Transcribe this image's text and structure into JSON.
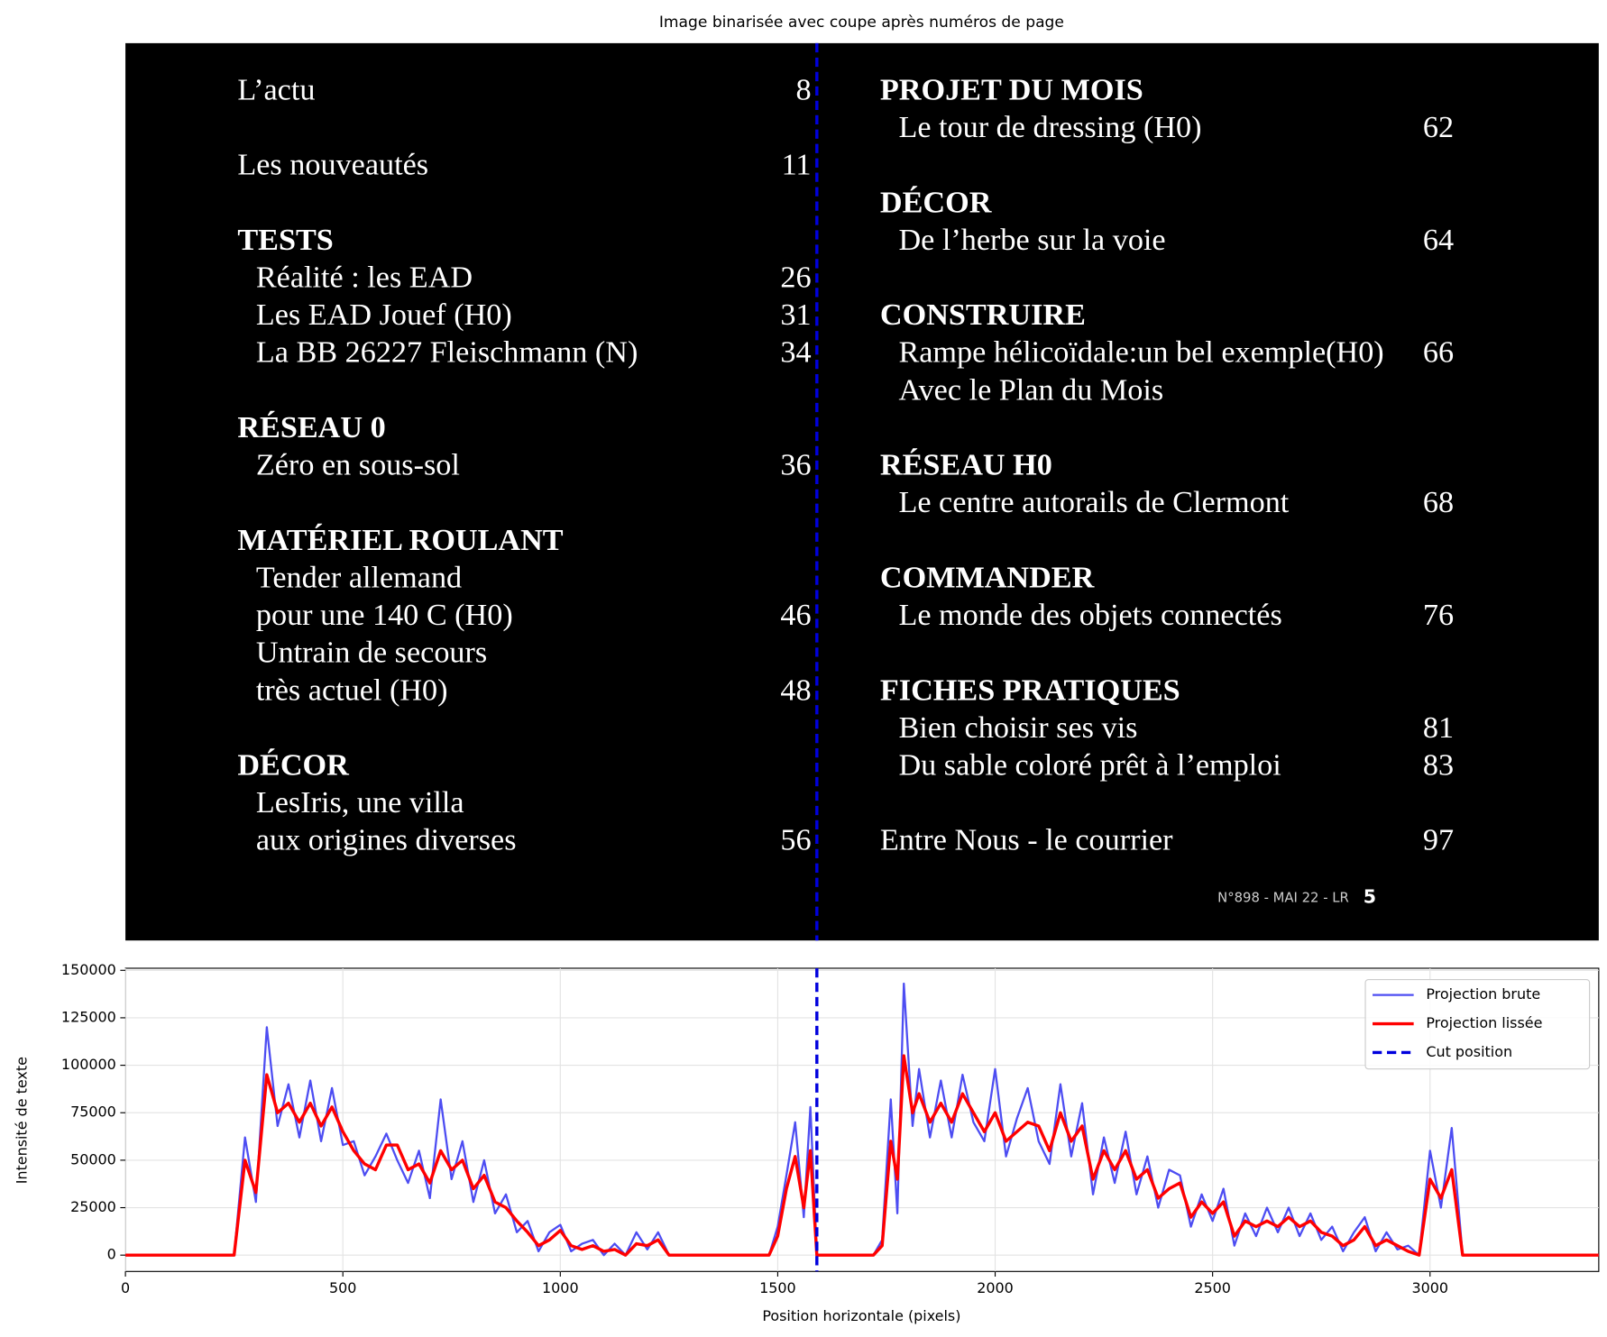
{
  "chart_data": [
    {
      "type": "image",
      "title": "Image binarisée avec coupe après numéros de page",
      "xlim": [
        0,
        3388
      ],
      "cut_x": 1590,
      "cut_color": "#0000dd",
      "left": [
        {
          "items": [
            {
              "text": "L’actu",
              "page": 8
            }
          ]
        },
        {
          "items": [
            {
              "text": "Les nouveautés",
              "page": 11
            }
          ]
        },
        {
          "heading": "TESTS",
          "items": [
            {
              "text": "Réalité : les EAD",
              "page": 26
            },
            {
              "text": "Les EAD Jouef (H0)",
              "page": 31
            },
            {
              "text": "La BB 26227 Fleischmann (N)",
              "page": 34
            }
          ]
        },
        {
          "heading": "RÉSEAU 0",
          "items": [
            {
              "text": "Zéro en sous-sol",
              "page": 36
            }
          ]
        },
        {
          "heading": "MATÉRIEL ROULANT",
          "items": [
            {
              "text": "Tender allemand"
            },
            {
              "text": "pour une 140 C (H0)",
              "page": 46
            },
            {
              "text": "Untrain de secours"
            },
            {
              "text": "très actuel (H0)",
              "page": 48
            }
          ]
        },
        {
          "heading": "DÉCOR",
          "items": [
            {
              "text": "LesIris, une villa"
            },
            {
              "text": "aux origines diverses",
              "page": 56
            }
          ]
        }
      ],
      "right": [
        {
          "heading": "PROJET DU MOIS",
          "items": [
            {
              "text": "Le tour de dressing (H0)",
              "page": 62
            }
          ]
        },
        {
          "heading": "DÉCOR",
          "items": [
            {
              "text": "De l’herbe sur la voie",
              "page": 64
            }
          ]
        },
        {
          "heading": "CONSTRUIRE",
          "items": [
            {
              "text": "Rampe hélicoïdale:un bel exemple(H0)",
              "page": 66
            },
            {
              "text": "Avec le Plan du Mois"
            }
          ]
        },
        {
          "heading": "RÉSEAU H0",
          "items": [
            {
              "text": "Le centre autorails de Clermont",
              "page": 68
            }
          ]
        },
        {
          "heading": "COMMANDER",
          "items": [
            {
              "text": "Le monde des objets connectés",
              "page": 76
            }
          ]
        },
        {
          "heading": "FICHES PRATIQUES",
          "items": [
            {
              "text": "Bien choisir ses vis",
              "page": 81
            },
            {
              "text": "Du sable coloré prêt à l’emploi",
              "page": 83
            }
          ]
        },
        {
          "items": [
            {
              "text": "Entre Nous - le courrier",
              "page": 97
            }
          ]
        }
      ],
      "footer": "N°898 - MAI 22 - LR",
      "footer_page": "5"
    },
    {
      "type": "line",
      "xlabel": "Position horizontale (pixels)",
      "ylabel": "Intensité de texte",
      "xlim": [
        0,
        3388
      ],
      "ylim": [
        -8600,
        151100
      ],
      "xticks": [
        0,
        500,
        1000,
        1500,
        2000,
        2500,
        3000
      ],
      "yticks": [
        0,
        25000,
        50000,
        75000,
        100000,
        125000,
        150000
      ],
      "grid": true,
      "legend": "upper right",
      "x": [
        0,
        250,
        275,
        300,
        325,
        350,
        375,
        400,
        425,
        450,
        475,
        500,
        525,
        550,
        575,
        600,
        625,
        650,
        675,
        700,
        725,
        750,
        775,
        800,
        825,
        850,
        875,
        900,
        925,
        950,
        975,
        1000,
        1025,
        1050,
        1075,
        1100,
        1125,
        1150,
        1175,
        1200,
        1225,
        1250,
        1480,
        1500,
        1520,
        1540,
        1560,
        1575,
        1590,
        1720,
        1740,
        1760,
        1775,
        1790,
        1810,
        1825,
        1850,
        1875,
        1900,
        1925,
        1950,
        1975,
        2000,
        2025,
        2050,
        2075,
        2100,
        2125,
        2150,
        2175,
        2200,
        2225,
        2250,
        2275,
        2300,
        2325,
        2350,
        2375,
        2400,
        2425,
        2450,
        2475,
        2500,
        2525,
        2550,
        2575,
        2600,
        2625,
        2650,
        2675,
        2700,
        2725,
        2750,
        2775,
        2800,
        2825,
        2850,
        2875,
        2900,
        2925,
        2950,
        2975,
        3000,
        3025,
        3050,
        3075,
        3388
      ],
      "series": [
        {
          "name": "Projection brute",
          "color": "#4d4df2",
          "width": 2,
          "values": [
            0,
            0,
            62000,
            28000,
            120000,
            68000,
            90000,
            62000,
            92000,
            60000,
            88000,
            58000,
            60000,
            42000,
            52000,
            64000,
            50000,
            38000,
            55000,
            30000,
            82000,
            40000,
            60000,
            28000,
            50000,
            22000,
            32000,
            12000,
            18000,
            2000,
            12000,
            16000,
            2000,
            6000,
            8000,
            0,
            6000,
            0,
            12000,
            3000,
            12000,
            0,
            0,
            15000,
            42000,
            70000,
            20000,
            78000,
            0,
            0,
            8000,
            82000,
            22000,
            143000,
            68000,
            98000,
            62000,
            92000,
            62000,
            95000,
            70000,
            60000,
            98000,
            52000,
            72000,
            88000,
            60000,
            48000,
            90000,
            52000,
            80000,
            32000,
            62000,
            38000,
            65000,
            32000,
            52000,
            25000,
            45000,
            42000,
            15000,
            32000,
            18000,
            35000,
            5000,
            22000,
            10000,
            25000,
            12000,
            25000,
            10000,
            22000,
            8000,
            15000,
            2000,
            12000,
            20000,
            2000,
            12000,
            3000,
            5000,
            0,
            55000,
            25000,
            67000,
            0,
            0
          ]
        },
        {
          "name": "Projection lissée",
          "color": "#ff0000",
          "width": 3,
          "values": [
            0,
            0,
            50000,
            33000,
            95000,
            75000,
            80000,
            70000,
            80000,
            68000,
            78000,
            65000,
            55000,
            48000,
            45000,
            58000,
            58000,
            45000,
            48000,
            38000,
            55000,
            45000,
            50000,
            35000,
            42000,
            28000,
            25000,
            18000,
            12000,
            5000,
            8000,
            13000,
            5000,
            3000,
            5000,
            2000,
            3000,
            0,
            6000,
            5000,
            8000,
            0,
            0,
            10000,
            35000,
            52000,
            25000,
            55000,
            0,
            0,
            5000,
            60000,
            40000,
            105000,
            75000,
            85000,
            70000,
            80000,
            70000,
            85000,
            75000,
            65000,
            75000,
            60000,
            65000,
            70000,
            68000,
            55000,
            75000,
            60000,
            68000,
            40000,
            55000,
            45000,
            55000,
            40000,
            45000,
            30000,
            35000,
            38000,
            20000,
            28000,
            22000,
            28000,
            10000,
            18000,
            15000,
            18000,
            15000,
            20000,
            15000,
            18000,
            12000,
            10000,
            5000,
            8000,
            15000,
            5000,
            8000,
            5000,
            2000,
            0,
            40000,
            30000,
            45000,
            0,
            0
          ]
        }
      ],
      "vlines": [
        {
          "name": "Cut position",
          "color": "#0000dd",
          "x": 1590
        }
      ]
    }
  ]
}
